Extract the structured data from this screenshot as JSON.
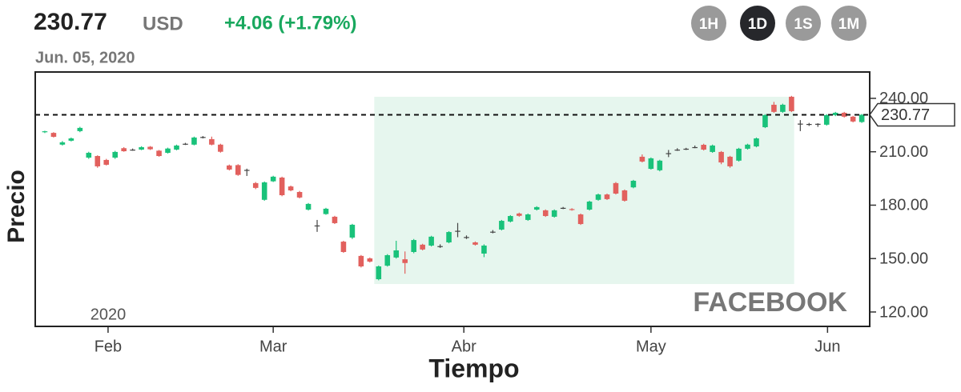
{
  "chart_data": {
    "type": "candlestick",
    "price": 230.77,
    "currency": "USD",
    "change": "+4.06 (+1.79%)",
    "date": "Jun. 05, 2020",
    "intervals": [
      "1H",
      "1D",
      "1S",
      "1M"
    ],
    "active_interval": 1,
    "xlabel": "Tiempo",
    "ylabel": "Precio",
    "watermark": "FACEBOOK",
    "year_label": "2020",
    "up_color": "#19c27a",
    "down_color": "#e2605d",
    "highlight": {
      "x": [
        37.5,
        85.3
      ],
      "y": [
        135.7,
        240.9
      ],
      "color": "#e6f6ee"
    },
    "xlim": [
      -1.09,
      93.9
    ],
    "xticks": [
      {
        "value": 7.2,
        "label": "Feb"
      },
      {
        "value": 26.0,
        "label": "Mar"
      },
      {
        "value": 47.7,
        "label": "Abr"
      },
      {
        "value": 69.0,
        "label": "May"
      },
      {
        "value": 89.1,
        "label": "Jun"
      }
    ],
    "ylim": [
      111.9,
      254.8
    ],
    "yticks": [
      {
        "value": 120,
        "label": "120.00"
      },
      {
        "value": 150,
        "label": "150.00"
      },
      {
        "value": 180,
        "label": "180.00"
      },
      {
        "value": 210,
        "label": "210.00"
      },
      {
        "value": 240,
        "label": "240.00"
      }
    ],
    "open": [
      221.0,
      220.6,
      214.0,
      216.2,
      221.6,
      206.7,
      207.6,
      205.4,
      206.7,
      212.0,
      211.0,
      211.2,
      212.8,
      210.6,
      209.4,
      211.2,
      214.2,
      214.0,
      218.0,
      217.1,
      214.0,
      202.3,
      202.5,
      199.5,
      192.4,
      183.0,
      193.4,
      195.5,
      190.5,
      187.4,
      177.5,
      168.3,
      175.0,
      173.5,
      159.5,
      161.8,
      151.5,
      150.1,
      138.4,
      146.0,
      150.6,
      149.6,
      153.7,
      157.8,
      157.3,
      156.7,
      159.1,
      165.6,
      161.8,
      159.1,
      152.8,
      164.8,
      166.3,
      170.8,
      175.3,
      171.7,
      177.5,
      177.1,
      173.5,
      178.3,
      177.8,
      174.8,
      177.5,
      183.0,
      186.0,
      192.4,
      188.3,
      190.0,
      207.2,
      200.4,
      199.6,
      209.0,
      211.0,
      211.5,
      212.6,
      213.9,
      209.9,
      209.9,
      207.2,
      205.0,
      211.7,
      213.0,
      223.8,
      236.4,
      232.4,
      240.9,
      225.5,
      225.6,
      225.6,
      225.2,
      230.6,
      231.9,
      229.7,
      226.7
    ],
    "high": [
      221.8,
      221.0,
      216.0,
      218.0,
      224.0,
      210.0,
      208.0,
      206.0,
      210.5,
      212.6,
      211.8,
      213.1,
      213.2,
      211.0,
      212.3,
      214.0,
      215.0,
      218.5,
      218.8,
      218.5,
      214.5,
      202.8,
      203.0,
      200.5,
      193.0,
      193.3,
      196.5,
      196.0,
      191.0,
      188.0,
      181.2,
      171.7,
      178.5,
      174.0,
      160.0,
      169.5,
      152.0,
      150.6,
      146.1,
      152.5,
      160.0,
      154.0,
      161.0,
      158.3,
      162.8,
      158.0,
      165.4,
      170.0,
      163.0,
      159.6,
      158.0,
      166.0,
      171.7,
      174.4,
      175.8,
      175.3,
      179.4,
      177.6,
      177.6,
      179.0,
      178.3,
      175.3,
      182.5,
      186.5,
      186.5,
      193.0,
      188.8,
      194.2,
      208.5,
      206.8,
      205.5,
      211.0,
      212.0,
      212.2,
      213.5,
      214.5,
      214.0,
      210.4,
      207.7,
      212.2,
      214.5,
      218.0,
      231.1,
      238.0,
      237.0,
      241.4,
      227.8,
      226.2,
      226.0,
      231.1,
      232.4,
      232.4,
      230.2,
      231.2
    ],
    "low": [
      220.5,
      218.0,
      213.5,
      215.8,
      221.0,
      206.0,
      201.0,
      202.3,
      206.0,
      210.0,
      210.6,
      210.9,
      211.0,
      207.2,
      209.0,
      210.8,
      213.8,
      213.6,
      217.5,
      213.6,
      209.5,
      199.5,
      196.5,
      196.4,
      189.0,
      182.5,
      193.0,
      185.0,
      187.8,
      183.8,
      177.0,
      165.0,
      174.6,
      169.4,
      153.2,
      161.0,
      145.0,
      147.8,
      137.8,
      145.5,
      150.0,
      141.5,
      153.0,
      154.6,
      156.8,
      156.0,
      158.6,
      162.0,
      161.0,
      157.3,
      150.8,
      164.2,
      165.8,
      170.3,
      173.5,
      171.2,
      177.0,
      173.4,
      173.0,
      177.8,
      176.9,
      168.9,
      177.0,
      182.5,
      182.9,
      186.0,
      182.0,
      189.5,
      204.0,
      200.0,
      199.0,
      207.0,
      210.5,
      211.0,
      212.0,
      210.7,
      209.4,
      203.0,
      201.0,
      204.5,
      211.2,
      212.5,
      223.3,
      231.9,
      231.9,
      232.3,
      221.6,
      224.5,
      224.0,
      224.7,
      230.0,
      229.2,
      226.5,
      226.2
    ],
    "close": [
      221.5,
      218.4,
      215.3,
      217.5,
      223.4,
      209.4,
      201.8,
      202.7,
      209.9,
      210.3,
      211.2,
      212.6,
      211.4,
      207.6,
      211.8,
      213.5,
      214.5,
      218.0,
      218.3,
      214.0,
      210.0,
      200.0,
      197.0,
      199.8,
      189.7,
      192.8,
      196.0,
      185.6,
      188.3,
      184.3,
      180.7,
      168.6,
      178.0,
      169.9,
      153.7,
      169.0,
      145.6,
      148.3,
      145.6,
      151.9,
      154.6,
      147.5,
      160.4,
      155.1,
      162.3,
      157.0,
      164.9,
      165.3,
      162.1,
      157.8,
      157.3,
      165.1,
      171.2,
      173.9,
      174.0,
      174.8,
      178.9,
      173.9,
      177.1,
      178.5,
      177.4,
      169.4,
      182.0,
      186.0,
      183.4,
      186.5,
      182.5,
      193.7,
      204.5,
      206.3,
      205.0,
      209.2,
      211.2,
      211.7,
      212.6,
      211.2,
      213.5,
      204.0,
      201.8,
      211.7,
      214.0,
      217.5,
      230.6,
      232.4,
      236.4,
      232.8,
      225.8,
      225.6,
      225.7,
      230.6,
      231.9,
      229.7,
      227.0,
      230.77
    ]
  }
}
